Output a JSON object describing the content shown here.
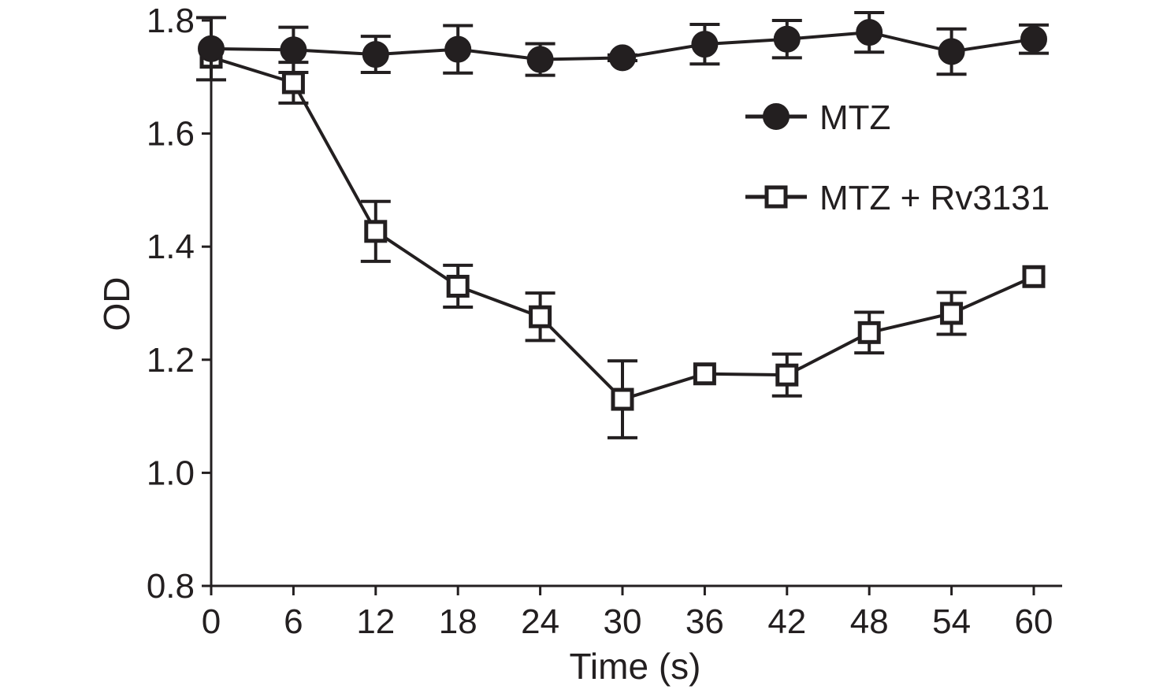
{
  "chart_data": {
    "type": "line",
    "xlabel": "Time (s)",
    "ylabel": "OD",
    "xlim": [
      0,
      60
    ],
    "ylim": [
      0.8,
      1.8
    ],
    "xticks": [
      "0",
      "6",
      "12",
      "18",
      "24",
      "30",
      "36",
      "42",
      "48",
      "54",
      "60"
    ],
    "yticks": [
      "0.8",
      "1.0",
      "1.2",
      "1.4",
      "1.6",
      "1.8"
    ],
    "x": [
      0,
      6,
      12,
      18,
      24,
      30,
      36,
      42,
      48,
      54,
      60
    ],
    "grid": false,
    "legend_position": "upper-right",
    "color": "#231f20",
    "series": [
      {
        "name": "MTZ",
        "marker": "filled-circle",
        "values": [
          1.75,
          1.748,
          1.74,
          1.749,
          1.731,
          1.734,
          1.758,
          1.767,
          1.779,
          1.745,
          1.767
        ],
        "errors": [
          0.055,
          0.04,
          0.032,
          0.042,
          0.028,
          0.005,
          0.035,
          0.033,
          0.035,
          0.04,
          0.025
        ]
      },
      {
        "name": "MTZ + Rv3131",
        "marker": "open-square",
        "values": [
          1.735,
          1.69,
          1.427,
          1.33,
          1.276,
          1.13,
          1.175,
          1.173,
          1.248,
          1.282,
          1.347
        ],
        "errors": [
          0.0,
          0.036,
          0.053,
          0.037,
          0.042,
          0.068,
          0.0,
          0.037,
          0.036,
          0.037,
          0.0
        ]
      }
    ]
  }
}
